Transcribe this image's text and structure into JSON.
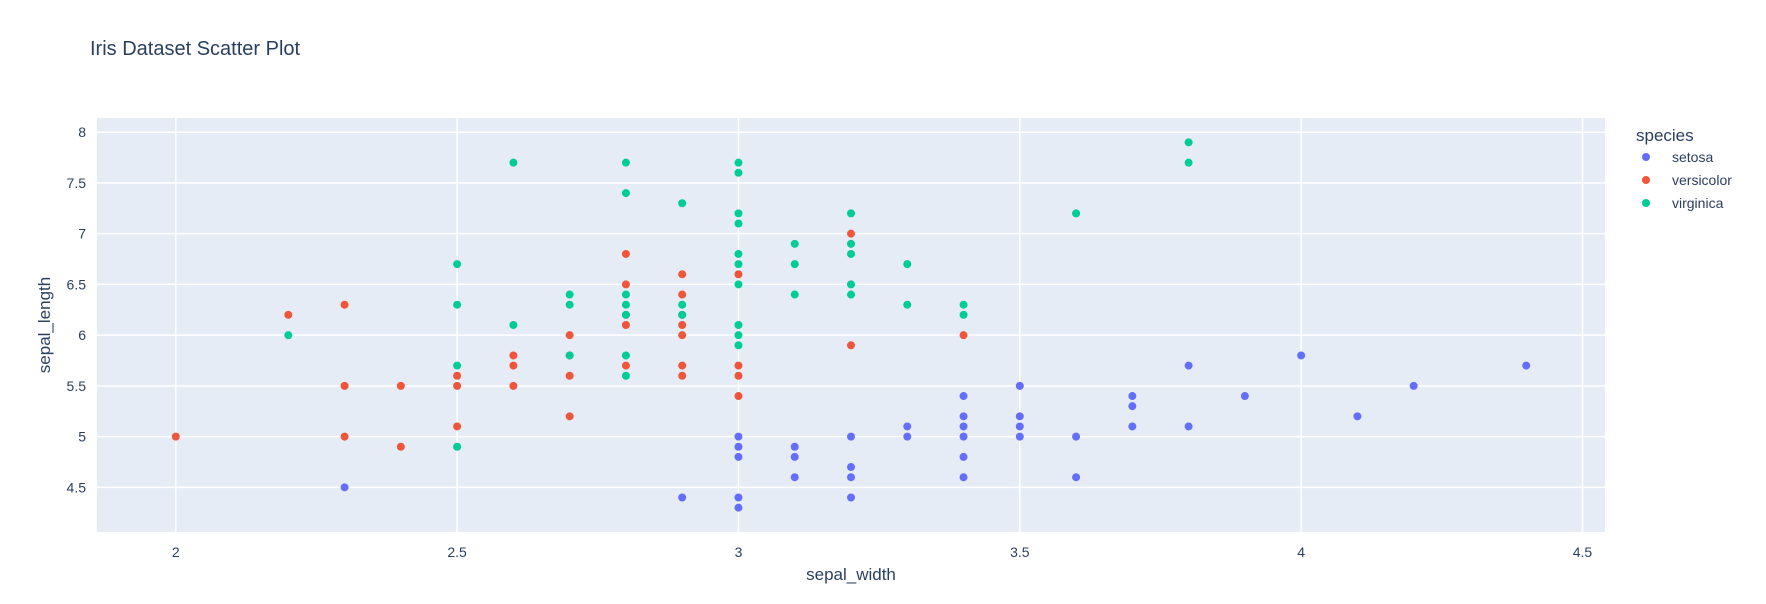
{
  "chart_data": {
    "type": "scatter",
    "title": "Iris Dataset Scatter Plot",
    "xlabel": "sepal_width",
    "ylabel": "sepal_length",
    "xlim": [
      1.86,
      4.54
    ],
    "ylim": [
      4.06,
      8.14
    ],
    "xticks": [
      2,
      2.5,
      3,
      3.5,
      4,
      4.5
    ],
    "xtick_labels": [
      "2",
      "2.5",
      "3",
      "3.5",
      "4",
      "4.5"
    ],
    "yticks": [
      4.5,
      5,
      5.5,
      6,
      6.5,
      7,
      7.5,
      8
    ],
    "ytick_labels": [
      "4.5",
      "5",
      "5.5",
      "6",
      "6.5",
      "7",
      "7.5",
      "8"
    ],
    "grid": true,
    "legend_title": "species",
    "legend_position": "right",
    "series": [
      {
        "name": "setosa",
        "color": "#636efa",
        "points": [
          [
            2.3,
            4.5
          ],
          [
            2.9,
            4.4
          ],
          [
            3.0,
            4.3
          ],
          [
            3.0,
            4.4
          ],
          [
            3.0,
            4.8
          ],
          [
            3.0,
            4.9
          ],
          [
            3.0,
            5.0
          ],
          [
            3.1,
            4.6
          ],
          [
            3.1,
            4.8
          ],
          [
            3.1,
            4.9
          ],
          [
            3.2,
            4.4
          ],
          [
            3.2,
            4.6
          ],
          [
            3.2,
            4.7
          ],
          [
            3.2,
            5.0
          ],
          [
            3.3,
            5.0
          ],
          [
            3.3,
            5.1
          ],
          [
            3.4,
            4.6
          ],
          [
            3.4,
            4.8
          ],
          [
            3.4,
            5.0
          ],
          [
            3.4,
            5.1
          ],
          [
            3.4,
            5.2
          ],
          [
            3.4,
            5.4
          ],
          [
            3.5,
            5.0
          ],
          [
            3.5,
            5.1
          ],
          [
            3.5,
            5.2
          ],
          [
            3.5,
            5.5
          ],
          [
            3.6,
            4.6
          ],
          [
            3.6,
            5.0
          ],
          [
            3.7,
            5.1
          ],
          [
            3.7,
            5.3
          ],
          [
            3.7,
            5.4
          ],
          [
            3.8,
            5.1
          ],
          [
            3.8,
            5.7
          ],
          [
            3.9,
            5.4
          ],
          [
            4.0,
            5.8
          ],
          [
            4.1,
            5.2
          ],
          [
            4.2,
            5.5
          ],
          [
            4.4,
            5.7
          ]
        ]
      },
      {
        "name": "versicolor",
        "color": "#ef553b",
        "points": [
          [
            2.0,
            5.0
          ],
          [
            2.2,
            6.2
          ],
          [
            2.3,
            5.0
          ],
          [
            2.3,
            5.5
          ],
          [
            2.3,
            6.3
          ],
          [
            2.4,
            4.9
          ],
          [
            2.4,
            5.5
          ],
          [
            2.5,
            5.1
          ],
          [
            2.5,
            5.5
          ],
          [
            2.5,
            5.6
          ],
          [
            2.6,
            5.5
          ],
          [
            2.6,
            5.7
          ],
          [
            2.6,
            5.8
          ],
          [
            2.7,
            5.2
          ],
          [
            2.7,
            5.6
          ],
          [
            2.7,
            5.8
          ],
          [
            2.7,
            6.0
          ],
          [
            2.8,
            5.7
          ],
          [
            2.8,
            6.1
          ],
          [
            2.8,
            6.2
          ],
          [
            2.8,
            6.5
          ],
          [
            2.8,
            6.8
          ],
          [
            2.9,
            5.6
          ],
          [
            2.9,
            5.7
          ],
          [
            2.9,
            6.0
          ],
          [
            2.9,
            6.1
          ],
          [
            2.9,
            6.2
          ],
          [
            2.9,
            6.4
          ],
          [
            2.9,
            6.6
          ],
          [
            3.0,
            5.4
          ],
          [
            3.0,
            5.6
          ],
          [
            3.0,
            5.7
          ],
          [
            3.0,
            6.6
          ],
          [
            3.2,
            5.9
          ],
          [
            3.2,
            7.0
          ],
          [
            3.4,
            6.0
          ]
        ]
      },
      {
        "name": "virginica",
        "color": "#00cc96",
        "points": [
          [
            2.2,
            6.0
          ],
          [
            2.5,
            4.9
          ],
          [
            2.5,
            5.7
          ],
          [
            2.5,
            6.3
          ],
          [
            2.5,
            6.7
          ],
          [
            2.6,
            6.1
          ],
          [
            2.6,
            7.7
          ],
          [
            2.7,
            5.8
          ],
          [
            2.7,
            6.3
          ],
          [
            2.7,
            6.4
          ],
          [
            2.8,
            5.6
          ],
          [
            2.8,
            5.8
          ],
          [
            2.8,
            6.2
          ],
          [
            2.8,
            6.3
          ],
          [
            2.8,
            6.4
          ],
          [
            2.8,
            7.4
          ],
          [
            2.8,
            7.7
          ],
          [
            2.9,
            6.2
          ],
          [
            2.9,
            6.3
          ],
          [
            2.9,
            7.3
          ],
          [
            3.0,
            5.9
          ],
          [
            3.0,
            6.0
          ],
          [
            3.0,
            6.1
          ],
          [
            3.0,
            6.5
          ],
          [
            3.0,
            6.7
          ],
          [
            3.0,
            6.8
          ],
          [
            3.0,
            7.1
          ],
          [
            3.0,
            7.2
          ],
          [
            3.0,
            7.6
          ],
          [
            3.0,
            7.7
          ],
          [
            3.1,
            6.4
          ],
          [
            3.1,
            6.7
          ],
          [
            3.1,
            6.9
          ],
          [
            3.2,
            6.4
          ],
          [
            3.2,
            6.5
          ],
          [
            3.2,
            6.8
          ],
          [
            3.2,
            6.9
          ],
          [
            3.2,
            7.2
          ],
          [
            3.3,
            6.3
          ],
          [
            3.3,
            6.7
          ],
          [
            3.4,
            6.2
          ],
          [
            3.4,
            6.3
          ],
          [
            3.6,
            7.2
          ],
          [
            3.8,
            7.7
          ],
          [
            3.8,
            7.9
          ]
        ]
      }
    ]
  }
}
